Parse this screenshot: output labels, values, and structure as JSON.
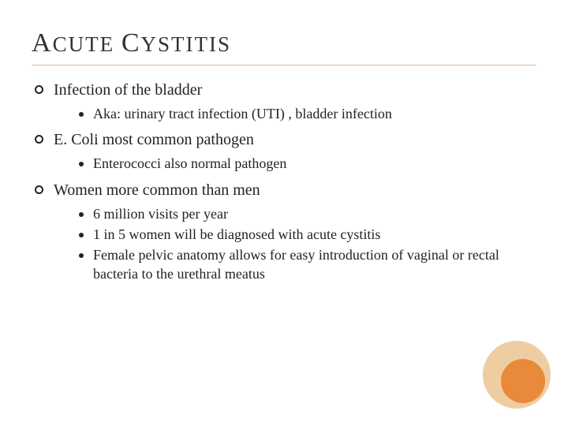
{
  "title_parts": {
    "a": "A",
    "cute": "CUTE",
    "c": "C",
    "ystitis": "YSTITIS"
  },
  "bullets": [
    {
      "text": "Infection of the bladder",
      "children": [
        {
          "text": "Aka: urinary tract infection (UTI) , bladder infection"
        }
      ]
    },
    {
      "text": "E. Coli most common pathogen",
      "children": [
        {
          "text": "Enterococci also normal pathogen"
        }
      ]
    },
    {
      "text": "Women more common than men",
      "children": [
        {
          "text": "6 million visits per year"
        },
        {
          "text": "1 in 5 women will be diagnosed with acute cystitis"
        },
        {
          "text": "Female pelvic anatomy allows for easy introduction of vaginal or rectal bacteria to the urethral meatus"
        }
      ]
    }
  ],
  "colors": {
    "rule": "#d9b99a",
    "circle_outer": "#eecda3",
    "circle_inner": "#e98a3a",
    "text": "#222222"
  }
}
